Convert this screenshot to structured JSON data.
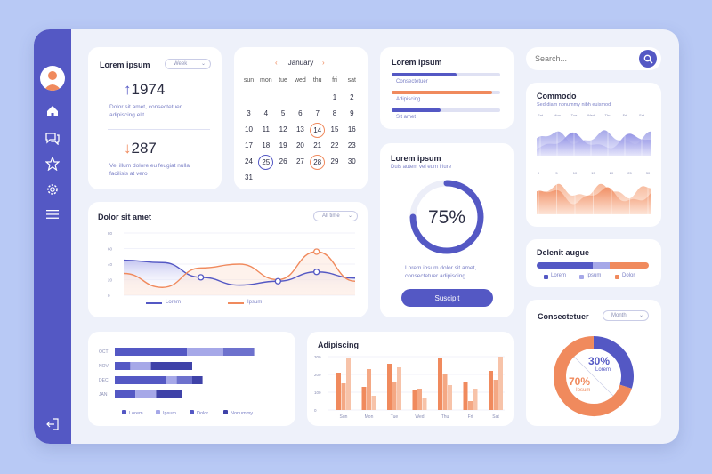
{
  "colors": {
    "accent": "#5458c4",
    "light_accent": "#a6a8e8",
    "orange": "#f08a5d",
    "light_orange": "#f7c3a9"
  },
  "sidebar": {
    "icons": [
      "user-avatar",
      "home-icon",
      "chat-icon",
      "star-icon",
      "gear-icon",
      "menu-icon",
      "logout-icon"
    ]
  },
  "stats": {
    "title": "Lorem ipsum",
    "filter": "Week",
    "up_value": "1974",
    "up_text": "Dolor sit amet, consectetuer adipiscing elit",
    "down_value": "287",
    "down_text": "Vel illum dolore eu feugiat nulla facilisis at vero"
  },
  "calendar": {
    "month": "January",
    "weekdays": [
      "sun",
      "mon",
      "tue",
      "wed",
      "thu",
      "fri",
      "sat"
    ],
    "rows": [
      [
        "",
        "",
        "",
        "",
        "",
        "1",
        "2"
      ],
      [
        "3",
        "4",
        "5",
        "6",
        "7",
        "8",
        "9"
      ],
      [
        "10",
        "11",
        "12",
        "13",
        "14",
        "15",
        "16"
      ],
      [
        "17",
        "18",
        "19",
        "20",
        "21",
        "22",
        "23"
      ],
      [
        "24",
        "25",
        "26",
        "27",
        "28",
        "29",
        "30"
      ],
      [
        "31",
        "",
        "",
        "",
        "",
        "",
        ""
      ]
    ],
    "highlighted": [
      "14",
      "25",
      "28"
    ]
  },
  "progress_card": {
    "title": "Lorem ipsum",
    "bars": [
      {
        "label": "Consectetuer",
        "value": 0.6,
        "color": "#5458c4"
      },
      {
        "label": "Adipiscing",
        "value": 0.93,
        "color": "#f08a5d"
      },
      {
        "label": "Sit amet",
        "value": 0.45,
        "color": "#5458c4"
      }
    ]
  },
  "search": {
    "placeholder": "Search..."
  },
  "commodo": {
    "title": "Commodo",
    "subtitle": "Sed diam nonummy nibh euismod",
    "ticks": [
      "Sat",
      "Mon",
      "Tue",
      "Wed",
      "Thu",
      "Fri",
      "Sat"
    ],
    "ticks2": [
      "0",
      "5",
      "10",
      "15",
      "20",
      "25",
      "30"
    ]
  },
  "line_chart": {
    "title": "Dolor sit amet",
    "filter": "All time",
    "y_ticks": [
      "80",
      "60",
      "40",
      "20",
      "0"
    ],
    "legend": [
      "Lorem",
      "Ipsum"
    ]
  },
  "gauge": {
    "title": "Lorem ipsum",
    "subtitle": "Duis autem vel eum iriure",
    "percent": "75%",
    "value": 0.75,
    "text": "Lorem ipsum dolor sit amet, consectetuer adipiscing",
    "button": "Suscipit"
  },
  "delenit": {
    "title": "Delenit augue",
    "segments": [
      {
        "value": 0.5,
        "color": "#5458c4"
      },
      {
        "value": 0.15,
        "color": "#a6a8e8"
      },
      {
        "value": 0.35,
        "color": "#f08a5d"
      }
    ],
    "legend": [
      "Lorem",
      "Ipsum",
      "Dolor"
    ]
  },
  "hbar": {
    "categories": [
      "OCT",
      "NOV",
      "DEC",
      "JAN"
    ],
    "legend": [
      "Lorem",
      "Ipsum",
      "Dolor",
      "Nonummy"
    ]
  },
  "adipiscing": {
    "title": "Adipiscing",
    "y_ticks": [
      "300",
      "200",
      "100",
      "0"
    ],
    "days": [
      "Sun",
      "Mon",
      "Tue",
      "Wed",
      "Thu",
      "Fri",
      "Sat"
    ]
  },
  "donut": {
    "title": "Consectetuer",
    "filter": "Month",
    "a_pct": "30%",
    "a_label": "Lorem",
    "a_value": 0.3,
    "b_pct": "70%",
    "b_label": "Ipsum",
    "b_value": 0.7
  },
  "chart_data": [
    {
      "type": "bar",
      "categories": [
        "OCT",
        "NOV",
        "DEC",
        "JAN"
      ],
      "series": [
        {
          "name": "Lorem",
          "values": [
            28,
            6,
            20,
            8
          ]
        },
        {
          "name": "Ipsum",
          "values": [
            14,
            8,
            4,
            8
          ]
        },
        {
          "name": "Dolor",
          "values": [
            12,
            0,
            6,
            0
          ]
        },
        {
          "name": "Nonummy",
          "values": [
            0,
            16,
            4,
            10
          ]
        }
      ]
    },
    {
      "type": "bar",
      "categories": [
        "Sun",
        "Mon",
        "Tue",
        "Wed",
        "Thu",
        "Fri",
        "Sat"
      ],
      "series": [
        {
          "values": [
            210,
            130,
            260,
            110,
            290,
            160,
            220
          ]
        },
        {
          "values": [
            150,
            230,
            160,
            120,
            200,
            50,
            170
          ]
        },
        {
          "values": [
            290,
            80,
            240,
            70,
            140,
            120,
            300
          ]
        }
      ],
      "ylim": [
        0,
        300
      ]
    },
    {
      "type": "line",
      "series": [
        {
          "name": "Lorem",
          "values": [
            45,
            42,
            23,
            13,
            18,
            30,
            22
          ]
        },
        {
          "name": "Ipsum",
          "values": [
            28,
            10,
            35,
            40,
            20,
            56,
            18
          ]
        }
      ],
      "ylim": [
        0,
        80
      ]
    }
  ]
}
